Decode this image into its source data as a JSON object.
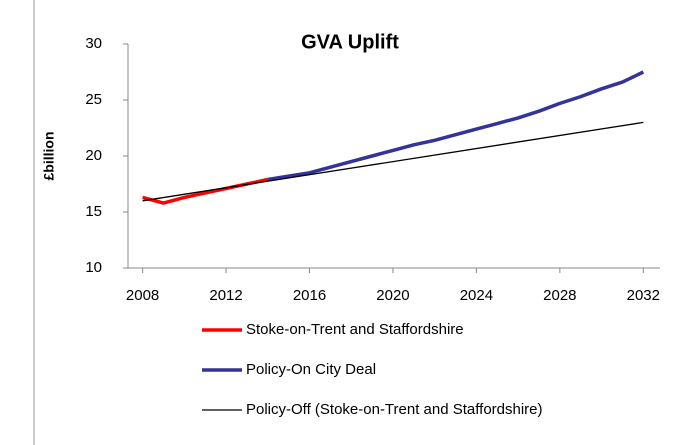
{
  "chart_data": {
    "type": "line",
    "title": "GVA Uplift",
    "y_label": "£billion",
    "series": [
      {
        "name": "Stoke-on-Trent and Staffordshire",
        "color": "#ff0000",
        "width": 3.5,
        "x": [
          2008,
          2009,
          2010,
          2011,
          2012,
          2013,
          2014
        ],
        "values": [
          16.3,
          15.8,
          16.3,
          16.7,
          17.1,
          17.5,
          17.9
        ]
      },
      {
        "name": "Policy-On City Deal",
        "color": "#333399",
        "width": 3.5,
        "x": [
          2014,
          2015,
          2016,
          2017,
          2018,
          2019,
          2020,
          2021,
          2022,
          2023,
          2024,
          2025,
          2026,
          2027,
          2028,
          2029,
          2030,
          2031,
          2032
        ],
        "values": [
          17.9,
          18.2,
          18.5,
          19.0,
          19.5,
          20.0,
          20.5,
          21.0,
          21.4,
          21.9,
          22.4,
          22.9,
          23.4,
          24.0,
          24.7,
          25.3,
          26.0,
          26.6,
          27.5
        ]
      },
      {
        "name": "Policy-Off (Stoke-on-Trent and Staffordshire)",
        "color": "#000000",
        "width": 1.3,
        "x": [
          2008,
          2032
        ],
        "values": [
          16.0,
          23.0
        ]
      }
    ],
    "xlim": [
      2007.3,
      2032.8
    ],
    "xticks": [
      2008,
      2012,
      2016,
      2020,
      2024,
      2028,
      2032
    ],
    "ylim": [
      10,
      30
    ],
    "yticks": [
      10,
      15,
      20,
      25,
      30
    ],
    "grid": false
  }
}
